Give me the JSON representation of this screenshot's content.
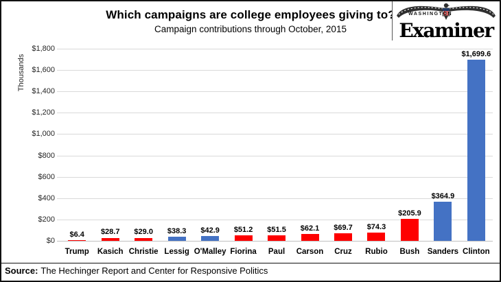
{
  "logo": {
    "masthead_top": "WASHINGTON",
    "masthead_name": "Examiner"
  },
  "chart_data": {
    "type": "bar",
    "title": "Which campaigns are college employees giving to?",
    "subtitle": "Campaign contributions through October, 2015",
    "ylabel": "Thousands",
    "xlabel": "",
    "ylim": [
      0,
      1800
    ],
    "ytick_step": 200,
    "yticks": [
      "$0",
      "$200",
      "$400",
      "$600",
      "$800",
      "$1,000",
      "$1,200",
      "$1,400",
      "$1,600",
      "$1,800"
    ],
    "grid": true,
    "legend": false,
    "categories": [
      "Trump",
      "Kasich",
      "Christie",
      "Lessig",
      "O'Malley",
      "Fiorina",
      "Paul",
      "Carson",
      "Cruz",
      "Rubio",
      "Bush",
      "Sanders",
      "Clinton"
    ],
    "values": [
      6.4,
      28.7,
      29.0,
      38.3,
      42.9,
      51.2,
      51.5,
      62.1,
      69.7,
      74.3,
      205.9,
      364.9,
      1699.6
    ],
    "data_labels": [
      "$6.4",
      "$28.7",
      "$29.0",
      "$38.3",
      "$42.9",
      "$51.2",
      "$51.5",
      "$62.1",
      "$69.7",
      "$74.3",
      "$205.9",
      "$364.9",
      "$1,699.6"
    ],
    "bar_color_keys": [
      "red",
      "red",
      "red",
      "blue",
      "blue",
      "red",
      "red",
      "red",
      "red",
      "red",
      "red",
      "blue",
      "blue"
    ],
    "colors": {
      "red": "#FE0000",
      "blue": "#4472C4",
      "gridline": "#D9D9D9",
      "axis": "#BFBFBF"
    }
  },
  "footer": {
    "source_label": "Source:",
    "source_text": "The Hechinger Report and Center for Responsive Politics"
  }
}
